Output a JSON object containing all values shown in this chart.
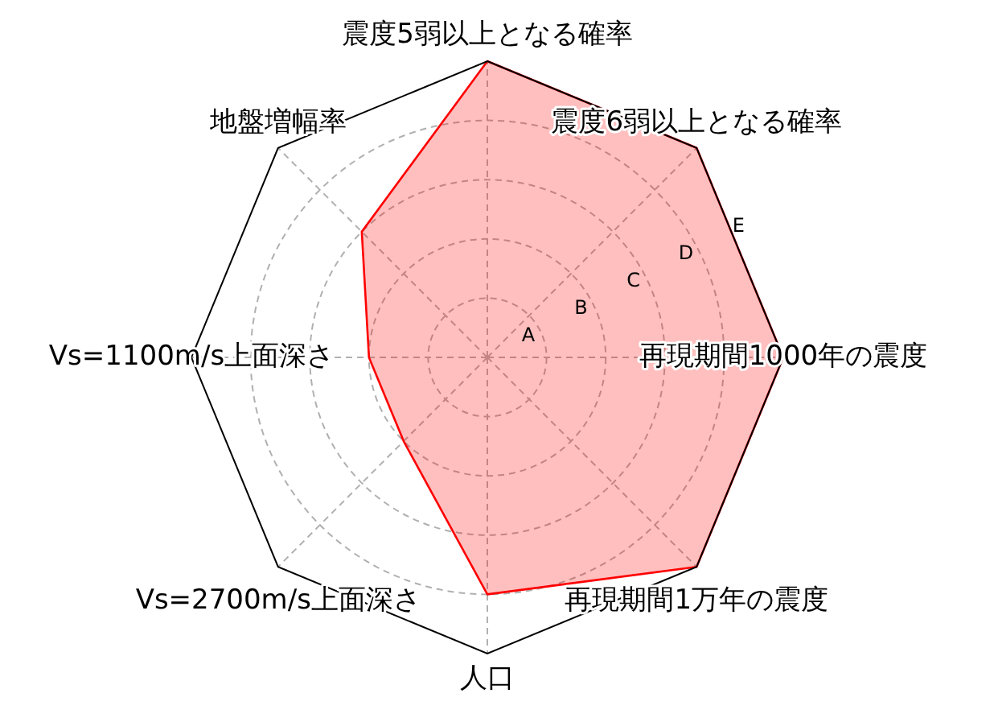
{
  "chart_data": {
    "type": "radar",
    "categories": [
      "震度5弱以上となる確率",
      "震度6弱以上となる確率",
      "再現期間1000年の震度",
      "再現期間1万年の震度",
      "人口",
      "Vs=2700m/s上面深さ",
      "Vs=1100m/s上面深さ",
      "地盤増幅率"
    ],
    "series": [
      {
        "color": "#ff0000",
        "values": [
          5,
          5,
          5,
          5,
          4,
          2,
          2,
          3
        ]
      }
    ],
    "ylim": [
      0,
      5
    ],
    "yticks": [
      {
        "value": 1,
        "label": "A"
      },
      {
        "value": 2,
        "label": "B"
      },
      {
        "value": 3,
        "label": "C"
      },
      {
        "value": 4,
        "label": "D"
      },
      {
        "value": 5,
        "label": "E"
      }
    ],
    "grid": true
  }
}
